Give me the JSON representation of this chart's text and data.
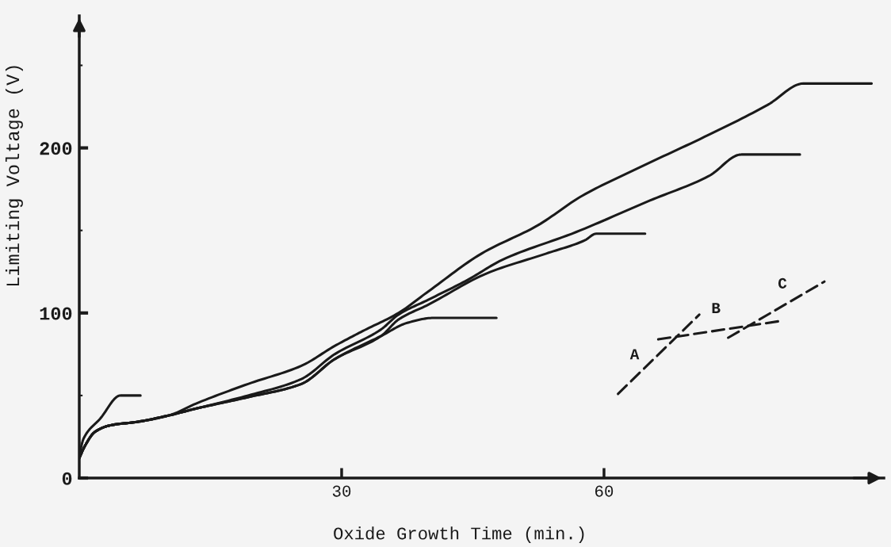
{
  "chart_data": {
    "type": "line",
    "xlabel": "Oxide Growth Time (min.)",
    "ylabel": "Limiting Voltage (V)",
    "xlim": [
      0,
      92
    ],
    "ylim": [
      0,
      280
    ],
    "xticks": [
      30,
      60
    ],
    "yticks": [
      0,
      {
        "value": 50,
        "label": null
      },
      100,
      {
        "value": 150,
        "label": null
      },
      200,
      {
        "value": 250,
        "label": null
      }
    ],
    "series": [
      {
        "color": "#1a1a1a",
        "line_style": "solid",
        "x": [
          0,
          0.5,
          2.4,
          4.7,
          7.0
        ],
        "values": [
          14,
          24,
          36,
          50,
          50
        ]
      },
      {
        "color": "#1a1a1a",
        "line_style": "solid",
        "x": [
          0,
          0.6,
          1.8,
          3.6,
          6.6,
          10.3,
          13.3,
          19.3,
          25.4,
          29.2,
          34.5,
          37.5,
          40.5,
          47.7
        ],
        "values": [
          12,
          19,
          28,
          32,
          34,
          38,
          42,
          49,
          57,
          72,
          86,
          94,
          97,
          97
        ]
      },
      {
        "color": "#1a1a1a",
        "line_style": "solid",
        "x": [
          0,
          0.6,
          1.8,
          3.6,
          6.6,
          10.3,
          13.3,
          19.3,
          25.4,
          29.2,
          34.5,
          36.5,
          39.9,
          46.6,
          53.4,
          57.8,
          59.1,
          64.7
        ],
        "values": [
          12,
          19,
          28,
          32,
          34,
          38,
          42,
          49,
          57,
          72,
          86,
          96,
          105,
          124,
          136,
          144,
          148,
          148
        ]
      },
      {
        "color": "#1a1a1a",
        "line_style": "solid",
        "x": [
          0,
          0.6,
          1.8,
          3.6,
          6.6,
          10.3,
          13.3,
          19.3,
          25.4,
          29.2,
          34.5,
          36.5,
          39.9,
          44.4,
          48.3,
          56.8,
          65.2,
          72,
          75.7,
          82.4
        ],
        "values": [
          12,
          19,
          28,
          32,
          34,
          38,
          42,
          50,
          60,
          75,
          90,
          99,
          108,
          120,
          132,
          149,
          168,
          183,
          196,
          196
        ]
      },
      {
        "color": "#1a1a1a",
        "line_style": "solid",
        "x": [
          0,
          0.6,
          1.8,
          3.6,
          6.6,
          10.3,
          13.3,
          19.3,
          25.4,
          29.2,
          32.4,
          36.5,
          39.9,
          46,
          52.4,
          57.5,
          63.6,
          72,
          78.7,
          82.8,
          90.6
        ],
        "values": [
          12,
          19,
          28,
          32,
          34,
          38,
          45,
          57,
          68,
          80,
          89,
          100,
          113,
          136,
          153,
          171,
          187,
          208,
          226,
          239,
          239
        ]
      },
      {
        "color": "#1a1a1a",
        "line_style": "dashed",
        "x": [
          61.6,
          70.9
        ],
        "values": [
          51,
          99
        ]
      },
      {
        "color": "#1a1a1a",
        "line_style": "dashed",
        "x": [
          66.2,
          80
        ],
        "values": [
          84,
          95
        ]
      },
      {
        "color": "#1a1a1a",
        "line_style": "dashed",
        "x": [
          74.2,
          85.2
        ],
        "values": [
          85,
          119
        ]
      }
    ],
    "annotations": [
      {
        "text": "A",
        "x": 63.5,
        "y": 61
      },
      {
        "text": "B",
        "x": 72.8,
        "y": 89
      },
      {
        "text": "C",
        "x": 80.4,
        "y": 104
      }
    ]
  }
}
